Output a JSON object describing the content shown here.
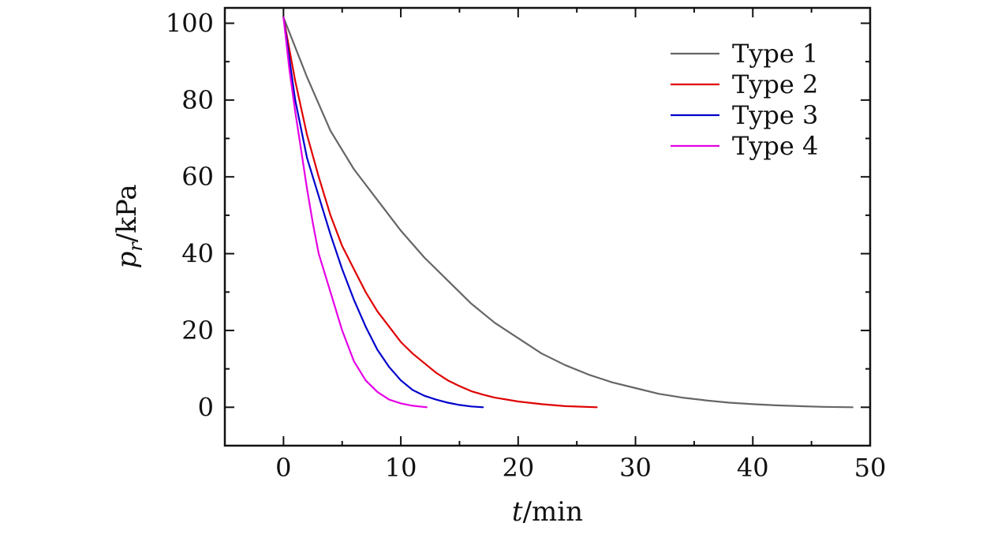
{
  "chart_data": {
    "type": "line",
    "xlabel": "t/min",
    "ylabel": "p_r/kPa",
    "xlabel_parts": {
      "var": "t",
      "unit": "/min"
    },
    "ylabel_parts": {
      "var": "p",
      "sub": "r",
      "unit": "/kPa"
    },
    "xlim": [
      -5,
      50
    ],
    "ylim": [
      -10,
      104
    ],
    "x_ticks": [
      0,
      10,
      20,
      30,
      40,
      50
    ],
    "y_ticks": [
      0,
      20,
      40,
      60,
      80,
      100
    ],
    "x_tick_labels": [
      "0",
      "10",
      "20",
      "30",
      "40",
      "50"
    ],
    "y_tick_labels": [
      "0",
      "20",
      "40",
      "60",
      "80",
      "100"
    ],
    "grid": false,
    "legend_position": "top-right",
    "series": [
      {
        "name": "Type 1",
        "color": "#666666",
        "x": [
          0,
          2,
          4,
          6,
          8,
          10,
          12,
          14,
          16,
          18,
          20,
          22,
          24,
          26,
          28,
          30,
          32,
          34,
          36,
          38,
          40,
          42,
          44,
          46,
          48.5
        ],
        "y": [
          101.5,
          86,
          72,
          62,
          54,
          46,
          39,
          33,
          27,
          22,
          18,
          14,
          11,
          8.5,
          6.5,
          5,
          3.5,
          2.5,
          1.8,
          1.2,
          0.8,
          0.5,
          0.3,
          0.1,
          0
        ]
      },
      {
        "name": "Type 2",
        "color": "#e00000",
        "x": [
          0,
          1,
          2,
          3,
          4,
          5,
          6,
          7,
          8,
          9,
          10,
          11,
          12,
          13,
          14,
          15,
          16,
          17,
          18,
          20,
          22,
          24,
          26.7
        ],
        "y": [
          101.5,
          85,
          71,
          60,
          50,
          42,
          36,
          30,
          25,
          21,
          17,
          14,
          11.5,
          9,
          7,
          5.5,
          4.2,
          3.3,
          2.5,
          1.5,
          0.8,
          0.3,
          0
        ]
      },
      {
        "name": "Type 3",
        "color": "#0000cc",
        "x": [
          0,
          1,
          2,
          3,
          4,
          5,
          6,
          7,
          8,
          9,
          10,
          11,
          12,
          13,
          14,
          15,
          16,
          17
        ],
        "y": [
          101.5,
          80,
          65,
          55,
          45,
          36,
          28,
          21,
          15,
          10.5,
          7,
          4.5,
          3,
          2,
          1.2,
          0.6,
          0.2,
          0
        ]
      },
      {
        "name": "Type 4",
        "color": "#e600e6",
        "x": [
          0,
          0.5,
          1,
          1.5,
          2,
          2.5,
          3,
          4,
          5,
          6,
          7,
          8,
          9,
          10,
          11,
          12.2
        ],
        "y": [
          101.5,
          88,
          77,
          67,
          57,
          48,
          40,
          30,
          20,
          12,
          7,
          4,
          2,
          1,
          0.4,
          0
        ]
      }
    ]
  }
}
